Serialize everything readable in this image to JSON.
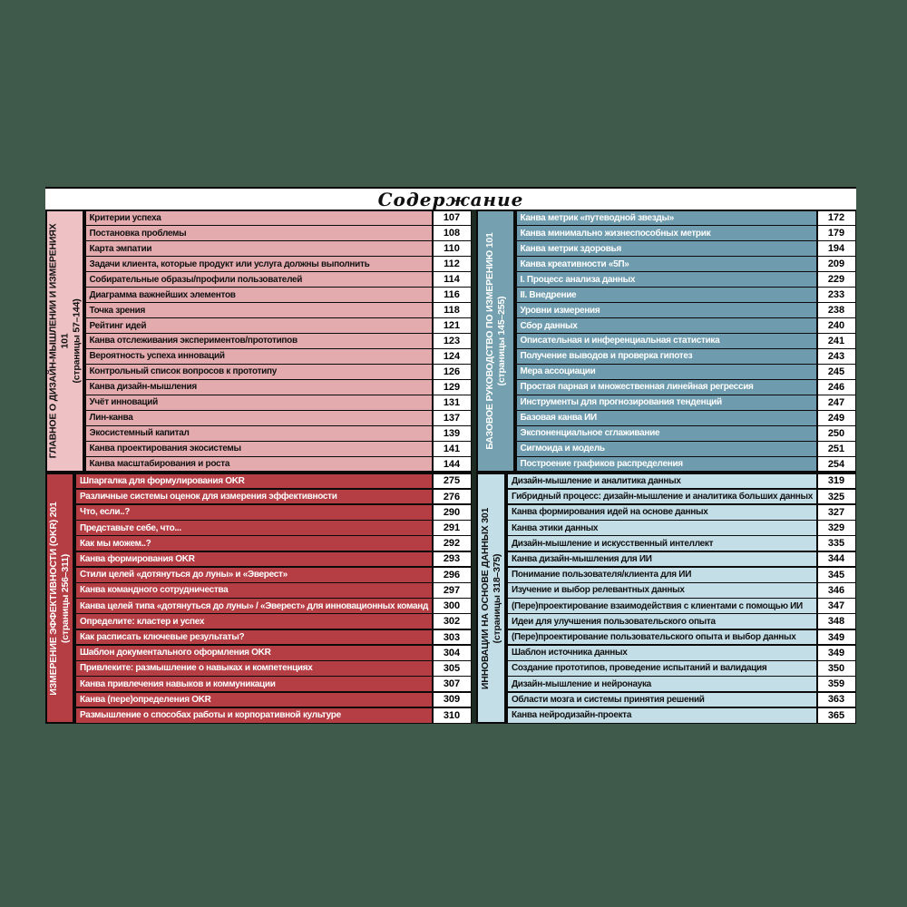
{
  "page_title": "Содержание",
  "colors": {
    "page_background": "#3f5a4a",
    "card_background": "#ffffff",
    "border": "#0a0a0a",
    "page_number_cell": "#ffffff"
  },
  "sections": [
    {
      "title": "ГЛАВНОЕ О ДИЗАЙН-МЫШЛЕНИИ И ИЗМЕРЕНИЯХ 101",
      "pages_label": "(страницы 57–144)",
      "colors": {
        "header_bg": "#eec1c4",
        "header_fg": "#111111",
        "row_bg": "#e4abaf",
        "row_fg": "#111111"
      },
      "items": [
        {
          "label": "Критерии успеха",
          "page": "107"
        },
        {
          "label": "Постановка проблемы",
          "page": "108"
        },
        {
          "label": "Карта эмпатии",
          "page": "110"
        },
        {
          "label": "Задачи клиента, которые продукт или услуга должны выполнить",
          "page": "112"
        },
        {
          "label": "Собирательные образы/профили пользователей",
          "page": "114"
        },
        {
          "label": "Диаграмма важнейших элементов",
          "page": "116"
        },
        {
          "label": "Точка зрения",
          "page": "118"
        },
        {
          "label": "Рейтинг идей",
          "page": "121"
        },
        {
          "label": "Канва отслеживания экспериментов/прототипов",
          "page": "123"
        },
        {
          "label": "Вероятность успеха инноваций",
          "page": "124"
        },
        {
          "label": "Контрольный список вопросов к прототипу",
          "page": "126"
        },
        {
          "label": "Канва дизайн-мышления",
          "page": "129"
        },
        {
          "label": "Учёт инноваций",
          "page": "131"
        },
        {
          "label": "Лин-канва",
          "page": "137"
        },
        {
          "label": "Экосистемный капитал",
          "page": "139"
        },
        {
          "label": "Канва проектирования экосистемы",
          "page": "141"
        },
        {
          "label": "Канва масштабирования и роста",
          "page": "144"
        }
      ]
    },
    {
      "title": "БАЗОВОЕ РУКОВОДСТВО ПО ИЗМЕРЕНИЮ 101",
      "pages_label": "(страницы 145–255)",
      "colors": {
        "header_bg": "#74a0b0",
        "header_fg": "#ffffff",
        "row_bg": "#6e9cae",
        "row_fg": "#ffffff"
      },
      "items": [
        {
          "label": "Канва метрик «путеводной звезды»",
          "page": "172"
        },
        {
          "label": "Канва минимально жизнеспособных метрик",
          "page": "179"
        },
        {
          "label": "Канва метрик здоровья",
          "page": "194"
        },
        {
          "label": "Канва креативности «5П»",
          "page": "209"
        },
        {
          "label": "I. Процесс анализа данных",
          "page": "229"
        },
        {
          "label": "II. Внедрение",
          "page": "233"
        },
        {
          "label": "Уровни измерения",
          "page": "238"
        },
        {
          "label": "Сбор данных",
          "page": "240"
        },
        {
          "label": "Описательная и инференциальная статистика",
          "page": "241"
        },
        {
          "label": "Получение выводов и проверка гипотез",
          "page": "243"
        },
        {
          "label": "Мера ассоциации",
          "page": "245"
        },
        {
          "label": "Простая парная и множественная линейная регрессия",
          "page": "246"
        },
        {
          "label": "Инструменты для прогнозирования тенденций",
          "page": "247"
        },
        {
          "label": "Базовая канва ИИ",
          "page": "249"
        },
        {
          "label": "Экспоненциальное сглаживание",
          "page": "250"
        },
        {
          "label": "Сигмоида и модель",
          "page": "251"
        },
        {
          "label": "Построение графиков распределения",
          "page": "254"
        }
      ]
    },
    {
      "title": "ИЗМЕРЕНИЕ ЭФФЕКТИВНОСТИ (OKR) 201",
      "pages_label": "(страницы 256–311)",
      "colors": {
        "header_bg": "#b53e45",
        "header_fg": "#ffffff",
        "row_bg": "#b53e45",
        "row_fg": "#ffffff"
      },
      "items": [
        {
          "label": "Шпаргалка для формулирования OKR",
          "page": "275"
        },
        {
          "label": "Различные системы оценок для измерения эффективности",
          "page": "276"
        },
        {
          "label": "Что, если..?",
          "page": "290"
        },
        {
          "label": "Представьте себе, что...",
          "page": "291"
        },
        {
          "label": "Как мы можем..?",
          "page": "292"
        },
        {
          "label": "Канва формирования OKR",
          "page": "293"
        },
        {
          "label": "Стили целей «дотянуться до луны» и «Эверест»",
          "page": "296"
        },
        {
          "label": "Канва командного сотрудничества",
          "page": "297"
        },
        {
          "label": "Канва целей типа «дотянуться до луны» / «Эверест» для инновационных команд",
          "page": "300"
        },
        {
          "label": "Определите: кластер и успех",
          "page": "302"
        },
        {
          "label": "Как расписать ключевые результаты?",
          "page": "303"
        },
        {
          "label": "Шаблон документального оформления OKR",
          "page": "304"
        },
        {
          "label": "Привлеките: размышление о навыках и компетенциях",
          "page": "305"
        },
        {
          "label": "Канва привлечения навыков и коммуникации",
          "page": "307"
        },
        {
          "label": "Канва (пере)определения OKR",
          "page": "309"
        },
        {
          "label": "Размышление о способах работы и корпоративной культуре",
          "page": "310"
        }
      ]
    },
    {
      "title": "ИННОВАЦИИ НА ОСНОВЕ ДАННЫХ 301",
      "pages_label": "(страницы 318–375)",
      "colors": {
        "header_bg": "#c4dee8",
        "header_fg": "#111111",
        "row_bg": "#c4dee8",
        "row_fg": "#111111"
      },
      "items": [
        {
          "label": "Дизайн-мышление и аналитика данных",
          "page": "319"
        },
        {
          "label": "Гибридный процесс: дизайн-мышление и аналитика больших данных",
          "page": "325"
        },
        {
          "label": "Канва формирования идей на основе данных",
          "page": "327"
        },
        {
          "label": "Канва этики данных",
          "page": "329"
        },
        {
          "label": "Дизайн-мышление и искусственный интеллект",
          "page": "335"
        },
        {
          "label": "Канва дизайн-мышления для ИИ",
          "page": "344"
        },
        {
          "label": "Понимание пользователя/клиента для ИИ",
          "page": "345"
        },
        {
          "label": "Изучение и выбор релевантных данных",
          "page": "346"
        },
        {
          "label": "(Пере)проектирование взаимодействия с клиентами с помощью ИИ",
          "page": "347"
        },
        {
          "label": "Идеи для улучшения пользовательского опыта",
          "page": "348"
        },
        {
          "label": "(Пере)проектирование пользовательского опыта и выбор данных",
          "page": "349"
        },
        {
          "label": "Шаблон источника данных",
          "page": "349"
        },
        {
          "label": "Создание прототипов, проведение испытаний и валидация",
          "page": "350"
        },
        {
          "label": "Дизайн-мышление и нейронаука",
          "page": "359"
        },
        {
          "label": "Области мозга и системы принятия решений",
          "page": "363"
        },
        {
          "label": "Канва нейродизайн-проекта",
          "page": "365"
        }
      ]
    }
  ]
}
